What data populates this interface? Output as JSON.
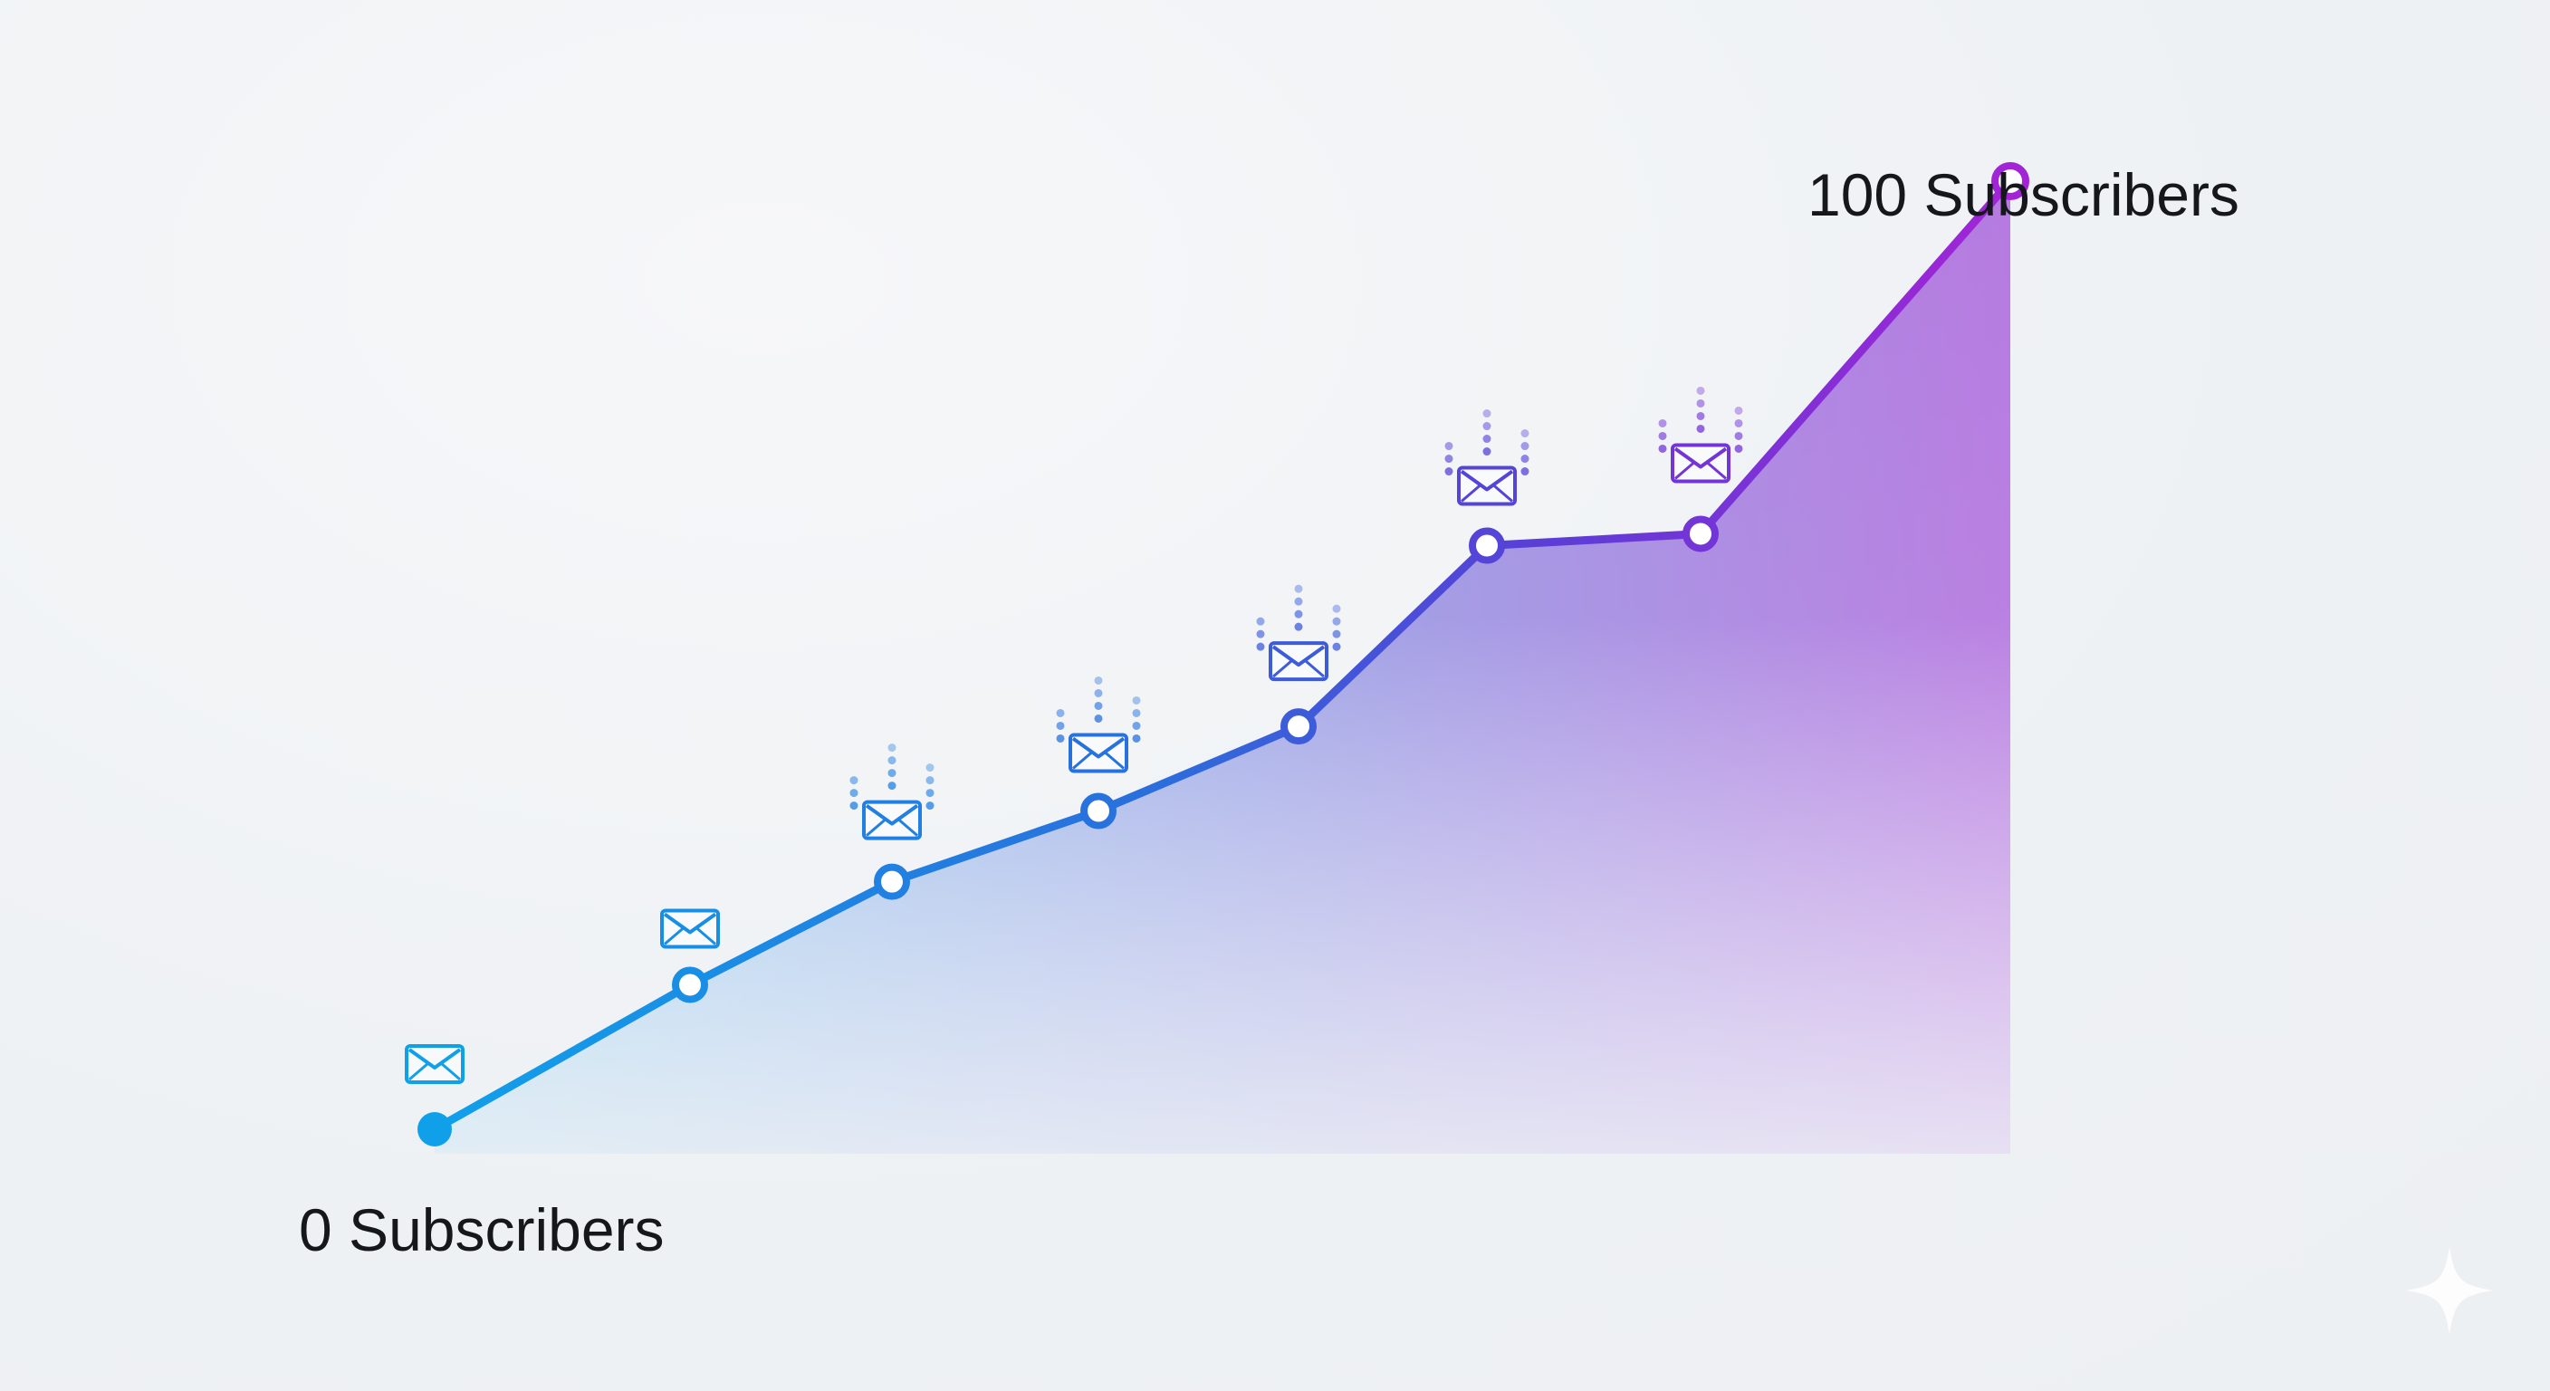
{
  "chart_data": {
    "type": "line",
    "x": [
      1,
      2,
      3,
      4,
      5,
      6,
      7,
      8
    ],
    "series": [
      {
        "values": [
          0,
          14.7,
          25.2,
          32.4,
          41,
          59.4,
          60.6,
          96.5
        ]
      }
    ],
    "ylim": [
      0,
      100
    ],
    "start_label": "0 Subscribers",
    "end_label": "100 Subscribers",
    "grid": false,
    "legend": "none",
    "fill": "area-gradient",
    "colors": {
      "line_start": "#10a0ea",
      "line_mid": "#3a55d8",
      "line_end": "#a324d6",
      "fill_start": "#7ec8ec",
      "fill_end": "#b46ee0",
      "marker_fill": "#ffffff"
    },
    "point_icons": [
      {
        "icon": "envelope-icon",
        "signal": false
      },
      {
        "icon": "envelope-icon",
        "signal": false
      },
      {
        "icon": "envelope-icon",
        "signal": true
      },
      {
        "icon": "envelope-icon",
        "signal": true
      },
      {
        "icon": "envelope-icon",
        "signal": true
      },
      {
        "icon": "envelope-icon",
        "signal": true
      },
      {
        "icon": "envelope-icon",
        "signal": true
      },
      {
        "icon": "none",
        "signal": false
      }
    ]
  },
  "watermark": {
    "icon": "sparkle-icon"
  }
}
